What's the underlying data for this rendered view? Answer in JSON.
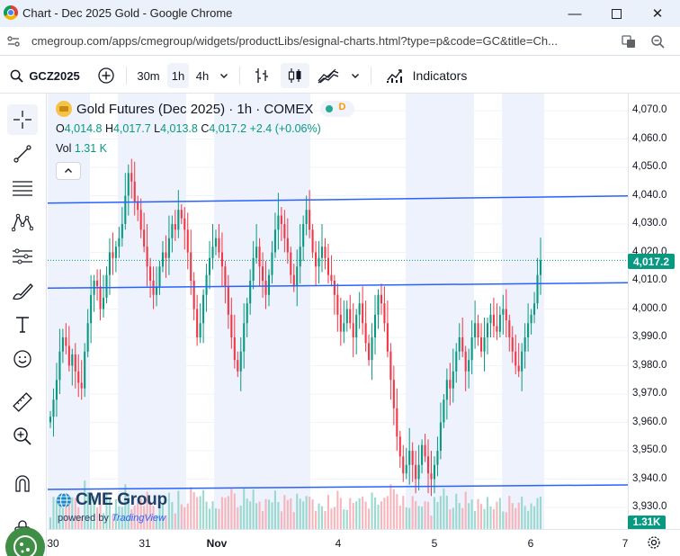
{
  "window": {
    "title": "Chart - Dec 2025 Gold - Google Chrome",
    "minimize_glyph": "—",
    "close_glyph": "✕"
  },
  "address_bar": {
    "url": "cmegroup.com/apps/cmegroup/widgets/productLibs/esignal-charts.html?type=p&code=GC&title=Ch..."
  },
  "toolbar": {
    "symbol": "GCZ2025",
    "intervals": [
      "30m",
      "1h",
      "4h"
    ],
    "active_interval": "1h",
    "indicators_label": "Indicators"
  },
  "left_tools": [
    "crosshair-icon",
    "trendline-icon",
    "fib-retracement-icon",
    "pattern-icon",
    "forecast-icon",
    "brush-icon",
    "text-icon",
    "emoji-icon",
    "ruler-icon",
    "zoom-in-icon",
    "magnet-icon",
    "lock-icon"
  ],
  "legend": {
    "title": "Gold Futures (Dec 2025) · 1h · COMEX",
    "status_letter": "D",
    "open_label": "O",
    "open": "4,014.8",
    "high_label": "H",
    "high": "4,017.7",
    "low_label": "L",
    "low": "4,013.8",
    "close_label": "C",
    "close": "4,017.2",
    "change": "+2.4 (+0.06%)",
    "vol_label": "Vol",
    "vol": "1.31 K"
  },
  "branding": {
    "cme": "CME Group",
    "powered_by": "powered by",
    "tradingview": "TradingView"
  },
  "price_scale": {
    "labels": [
      "4,070.0",
      "4,060.0",
      "4,050.0",
      "4,040.0",
      "4,030.0",
      "4,020.0",
      "4,010.0",
      "4,000.0",
      "3,990.0",
      "3,980.0",
      "3,970.0",
      "3,960.0",
      "3,950.0",
      "3,940.0",
      "3,930.0"
    ],
    "last_price": "4,017.2",
    "last_volume": "1.31K"
  },
  "time_scale": {
    "labels": [
      {
        "text": "30",
        "bold": false
      },
      {
        "text": "31",
        "bold": false
      },
      {
        "text": "Nov",
        "bold": true
      },
      {
        "text": "4",
        "bold": false
      },
      {
        "text": "5",
        "bold": false
      },
      {
        "text": "6",
        "bold": false
      },
      {
        "text": "7",
        "bold": false
      }
    ]
  },
  "colors": {
    "up": "#089981",
    "down": "#f23645",
    "session_band": "#eef2fc",
    "channel_line": "#2962ff"
  },
  "chart_data": {
    "type": "candlestick",
    "symbol": "GCZ2025",
    "interval": "1h",
    "ylim": [
      3925,
      4075
    ],
    "y_ticks": [
      3930,
      3940,
      3950,
      3960,
      3970,
      3980,
      3990,
      4000,
      4010,
      4020,
      4030,
      4040,
      4050,
      4060,
      4070
    ],
    "x_ticks": [
      "30",
      "31",
      "Nov",
      "4",
      "5",
      "6",
      "7"
    ],
    "last_price": 4017.2,
    "horizontal_lines": [
      4038,
      4008,
      3937
    ],
    "close_path": [
      3962,
      3968,
      3975,
      3985,
      3990,
      3987,
      3980,
      3984,
      3978,
      3974,
      3972,
      3985,
      3995,
      4005,
      4010,
      4008,
      4000,
      4004,
      4012,
      4020,
      4018,
      4022,
      4025,
      4030,
      4040,
      4048,
      4045,
      4038,
      4035,
      4028,
      4022,
      4015,
      4010,
      4005,
      4008,
      4015,
      4020,
      4018,
      4025,
      4030,
      4028,
      4035,
      4032,
      4028,
      4020,
      4010,
      4000,
      3990,
      3995,
      4005,
      4012,
      4018,
      4022,
      4025,
      4020,
      4015,
      4008,
      3998,
      3990,
      3982,
      3978,
      3985,
      3995,
      4002,
      4010,
      4018,
      4022,
      4015,
      4010,
      4005,
      4012,
      4020,
      4028,
      4033,
      4030,
      4025,
      4020,
      4012,
      4008,
      4015,
      4022,
      4030,
      4035,
      4028,
      4020,
      4015,
      4018,
      4022,
      4018,
      4012,
      4010,
      4005,
      3998,
      3992,
      3995,
      4000,
      3995,
      3990,
      3998,
      4002,
      3995,
      3988,
      3982,
      3990,
      3998,
      4005,
      4002,
      3995,
      3985,
      3975,
      3965,
      3955,
      3948,
      3942,
      3945,
      3950,
      3945,
      3940,
      3945,
      3952,
      3948,
      3942,
      3940,
      3945,
      3950,
      3960,
      3968,
      3975,
      3972,
      3978,
      3985,
      3990,
      3985,
      3978,
      3982,
      3990,
      3995,
      3990,
      3985,
      3990,
      3995,
      3998,
      3994,
      3992,
      3998,
      4000,
      3996,
      3990,
      3985,
      3980,
      3978,
      3985,
      3990,
      3995,
      3998,
      4002,
      4012,
      4017.2
    ]
  }
}
